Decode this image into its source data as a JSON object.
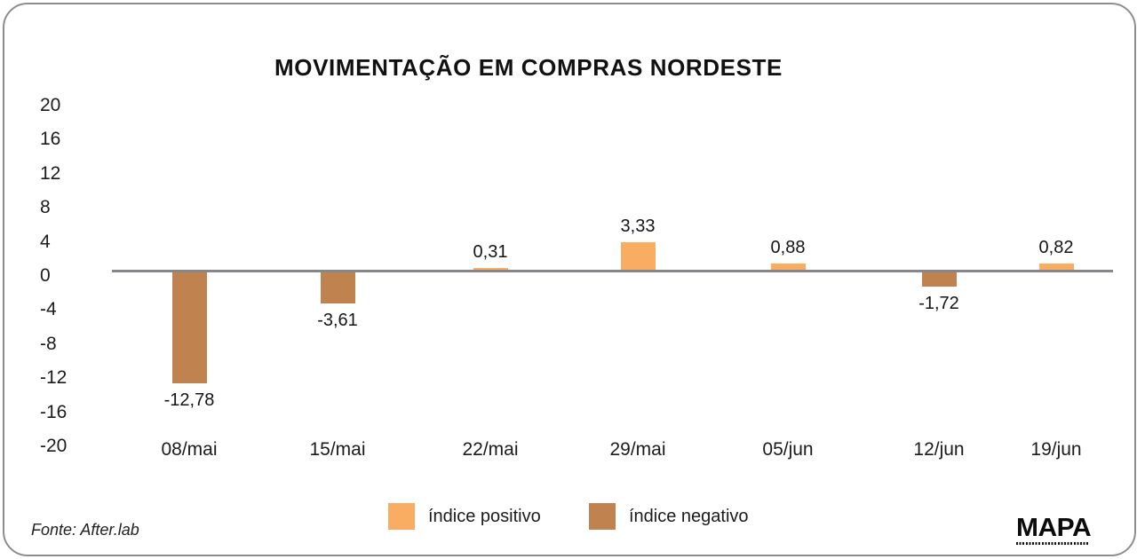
{
  "title": "MOVIMENTAÇÃO EM COMPRAS NORDESTE",
  "source_note": "Fonte: After.lab",
  "logo": {
    "text": "MAPA"
  },
  "legend": [
    {
      "label": "índice positivo",
      "color": "#F9AD63"
    },
    {
      "label": "índice negativo",
      "color": "#C08350"
    }
  ],
  "colors": {
    "positive_bar": "#F9AD63",
    "negative_bar": "#C08350",
    "axis_line": "#85878A",
    "frame_border": "#8B8E90",
    "text": "#1B1B1B"
  },
  "chart_data": {
    "type": "bar",
    "title": "MOVIMENTAÇÃO EM COMPRAS NORDESTE",
    "categories": [
      "08/mai",
      "15/mai",
      "22/mai",
      "29/mai",
      "05/jun",
      "12/jun",
      "19/jun"
    ],
    "values": [
      -12.78,
      -3.61,
      0.31,
      3.33,
      0.88,
      -1.72,
      0.82
    ],
    "value_labels": [
      "-12,78",
      "-3,61",
      "0,31",
      "3,33",
      "0,88",
      "-1,72",
      "0,82"
    ],
    "series": [
      {
        "name": "índice positivo",
        "color": "#F9AD63",
        "rule": "values >= 0"
      },
      {
        "name": "índice negativo",
        "color": "#C08350",
        "rule": "values < 0"
      }
    ],
    "y_ticks": [
      20,
      16,
      12,
      8,
      4,
      0,
      -4,
      -8,
      -12,
      -16,
      -20
    ],
    "ylim": [
      -20,
      20
    ],
    "xlabel": "",
    "ylabel": "",
    "grid": false,
    "legend_position": "bottom"
  }
}
